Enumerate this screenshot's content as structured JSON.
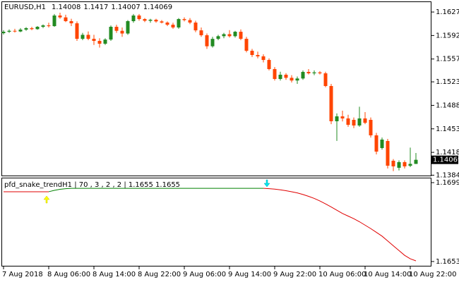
{
  "chart_data": [
    {
      "type": "candlestick",
      "title": "EURUSD,H1",
      "up_color": "#228b22",
      "down_color": "#ff4500",
      "categories": [
        "7 Aug 2018",
        null,
        null,
        null,
        null,
        null,
        null,
        null,
        "8 Aug 06:00",
        null,
        null,
        null,
        null,
        null,
        null,
        null,
        "8 Aug 14:00",
        null,
        null,
        null,
        null,
        null,
        null,
        null,
        "8 Aug 22:00",
        null,
        null,
        null,
        null,
        null,
        null,
        null,
        "9 Aug 06:00",
        null,
        null,
        null,
        null,
        null,
        null,
        null,
        "9 Aug 14:00",
        null,
        null,
        null,
        null,
        null,
        null,
        null,
        "9 Aug 22:00",
        null,
        null,
        null,
        null,
        null,
        null,
        null,
        "10 Aug 06:00",
        null,
        null,
        null,
        null,
        null,
        null,
        null,
        "10 Aug 14:00",
        null,
        null,
        null,
        null,
        null,
        null,
        null,
        "10 Aug 22:00",
        null
      ],
      "ohlc": [
        [
          1.15955,
          1.16,
          1.15935,
          1.15976
        ],
        [
          1.15976,
          1.1601,
          1.1596,
          1.1599
        ],
        [
          1.1599,
          1.1602,
          1.15965,
          1.1598
        ],
        [
          1.1598,
          1.1603,
          1.1597,
          1.16008
        ],
        [
          1.16008,
          1.16045,
          1.1599,
          1.16029
        ],
        [
          1.16029,
          1.1605,
          1.16,
          1.16015
        ],
        [
          1.16015,
          1.1606,
          1.16005,
          1.1605
        ],
        [
          1.1605,
          1.16085,
          1.1603,
          1.16071
        ],
        [
          1.16071,
          1.1611,
          1.1604,
          1.1606
        ],
        [
          1.1606,
          1.1624,
          1.1605,
          1.16218
        ],
        [
          1.16218,
          1.1626,
          1.1617,
          1.1619
        ],
        [
          1.1619,
          1.1623,
          1.1612,
          1.16134
        ],
        [
          1.16134,
          1.1617,
          1.1606,
          1.16102
        ],
        [
          1.16102,
          1.1613,
          1.1584,
          1.15871
        ],
        [
          1.15871,
          1.1596,
          1.1585,
          1.1593
        ],
        [
          1.1593,
          1.1598,
          1.1585,
          1.15871
        ],
        [
          1.15871,
          1.1593,
          1.1578,
          1.1584
        ],
        [
          1.1584,
          1.1588,
          1.1574,
          1.15798
        ],
        [
          1.15798,
          1.1588,
          1.1578,
          1.1586
        ],
        [
          1.1586,
          1.1607,
          1.1584,
          1.1605
        ],
        [
          1.1605,
          1.1608,
          1.1596,
          1.1599
        ],
        [
          1.1599,
          1.1604,
          1.159,
          1.1595
        ],
        [
          1.1595,
          1.1615,
          1.1593,
          1.16134
        ],
        [
          1.16134,
          1.1624,
          1.1611,
          1.16218
        ],
        [
          1.16218,
          1.1624,
          1.1614,
          1.16165
        ],
        [
          1.16165,
          1.1618,
          1.1612,
          1.1614
        ],
        [
          1.1614,
          1.1617,
          1.1611,
          1.16155
        ],
        [
          1.16155,
          1.1617,
          1.1611,
          1.1613
        ],
        [
          1.1613,
          1.1615,
          1.161,
          1.16113
        ],
        [
          1.16113,
          1.1613,
          1.1606,
          1.16081
        ],
        [
          1.16081,
          1.1611,
          1.1602,
          1.1604
        ],
        [
          1.1604,
          1.1618,
          1.1602,
          1.16165
        ],
        [
          1.16165,
          1.1619,
          1.1613,
          1.1615
        ],
        [
          1.1615,
          1.1618,
          1.1609,
          1.16113
        ],
        [
          1.16113,
          1.1614,
          1.1597,
          1.15997
        ],
        [
          1.15997,
          1.1604,
          1.159,
          1.15924
        ],
        [
          1.15924,
          1.1595,
          1.1572,
          1.1576
        ],
        [
          1.1576,
          1.159,
          1.1574,
          1.1587
        ],
        [
          1.1587,
          1.1593,
          1.1585,
          1.1591
        ],
        [
          1.1591,
          1.1596,
          1.1588,
          1.1594
        ],
        [
          1.1594,
          1.16,
          1.1589,
          1.1591
        ],
        [
          1.1591,
          1.1599,
          1.1589,
          1.15976
        ],
        [
          1.15976,
          1.1601,
          1.1585,
          1.15871
        ],
        [
          1.15871,
          1.159,
          1.1567,
          1.15693
        ],
        [
          1.15693,
          1.1572,
          1.156,
          1.1563
        ],
        [
          1.1563,
          1.1568,
          1.1558,
          1.1561
        ],
        [
          1.1561,
          1.1564,
          1.1552,
          1.15556
        ],
        [
          1.15556,
          1.1558,
          1.154,
          1.1542
        ],
        [
          1.1542,
          1.1545,
          1.1525,
          1.15273
        ],
        [
          1.15273,
          1.1538,
          1.1525,
          1.15336
        ],
        [
          1.15336,
          1.1536,
          1.1526,
          1.1529
        ],
        [
          1.1529,
          1.1533,
          1.1522,
          1.1525
        ],
        [
          1.1525,
          1.1531,
          1.152,
          1.1528
        ],
        [
          1.1528,
          1.154,
          1.1526,
          1.15378
        ],
        [
          1.15378,
          1.1542,
          1.1534,
          1.15357
        ],
        [
          1.15357,
          1.154,
          1.1533,
          1.1537
        ],
        [
          1.1537,
          1.1539,
          1.1534,
          1.15357
        ],
        [
          1.15357,
          1.1538,
          1.1515,
          1.15168
        ],
        [
          1.15168,
          1.152,
          1.146,
          1.14643
        ],
        [
          1.14643,
          1.1476,
          1.1435,
          1.14716
        ],
        [
          1.14716,
          1.148,
          1.1464,
          1.14685
        ],
        [
          1.14685,
          1.1474,
          1.1456,
          1.1459
        ],
        [
          1.14664,
          1.147,
          1.1454,
          1.1458
        ],
        [
          1.1458,
          1.1486,
          1.1456,
          1.14685
        ],
        [
          1.14685,
          1.1478,
          1.146,
          1.1462
        ],
        [
          1.14664,
          1.147,
          1.144,
          1.14433
        ],
        [
          1.14433,
          1.1447,
          1.1415,
          1.14191
        ],
        [
          1.14244,
          1.144,
          1.1422,
          1.1437
        ],
        [
          1.14349,
          1.1438,
          1.1394,
          1.13981
        ],
        [
          1.14055,
          1.1408,
          1.139,
          1.13971
        ],
        [
          1.1395,
          1.1406,
          1.1391,
          1.14034
        ],
        [
          1.14034,
          1.1406,
          1.1394,
          1.13971
        ],
        [
          1.1398,
          1.1425,
          1.1396,
          1.14008
        ],
        [
          1.14008,
          1.1417,
          1.14007,
          1.14069
        ]
      ],
      "ylim": [
        1.13824,
        1.16428
      ],
      "yticks": [
        {
          "value": 1.1627,
          "label": "1.16270"
        },
        {
          "value": 1.1592,
          "label": "1.15920"
        },
        {
          "value": 1.1557,
          "label": "1.15570"
        },
        {
          "value": 1.1523,
          "label": "1.15230"
        },
        {
          "value": 1.1488,
          "label": "1.14880"
        },
        {
          "value": 1.1453,
          "label": "1.14530"
        },
        {
          "value": 1.1418,
          "label": "1.14180"
        },
        {
          "value": 1.1384,
          "label": "1.13840"
        }
      ]
    },
    {
      "type": "line",
      "title": "pfd_snake_trendH1 | 70 , 3 , 2 , 2 | 1.1655 1.1655",
      "series": [
        {
          "color": "#e00000",
          "values": [
            1.16937,
            1.16937,
            1.16937,
            1.16937,
            1.16937,
            1.16937,
            1.16937,
            1.16937,
            1.16937,
            null,
            null,
            null,
            null,
            null,
            null,
            null,
            null,
            null,
            null,
            null,
            null,
            null,
            null,
            null,
            null,
            null,
            null,
            null,
            null,
            null,
            null,
            null,
            null,
            null,
            null,
            null,
            null,
            null,
            null,
            null,
            null,
            null,
            null,
            null,
            null,
            null,
            1.16957,
            1.16955,
            1.16952,
            1.16948,
            1.16943,
            1.16937,
            1.1693,
            1.16921,
            1.1691,
            1.16898,
            1.16883,
            1.16866,
            1.16848,
            1.16829,
            1.1681,
            1.16795,
            1.1678,
            1.16762,
            1.16742,
            1.16722,
            1.167,
            1.16678,
            1.1665,
            1.16622,
            1.16594,
            1.16566,
            1.16546,
            1.16534
          ]
        },
        {
          "color": "#008000",
          "values": [
            null,
            null,
            null,
            null,
            null,
            null,
            null,
            null,
            1.16937,
            1.16945,
            1.16951,
            1.16955,
            1.16957,
            1.16957,
            1.16957,
            1.16957,
            1.16957,
            1.16957,
            1.16957,
            1.16957,
            1.16957,
            1.16957,
            1.16957,
            1.16957,
            1.16957,
            1.16957,
            1.16957,
            1.16957,
            1.16957,
            1.16957,
            1.16957,
            1.16957,
            1.16957,
            1.16957,
            1.16957,
            1.16957,
            1.16957,
            1.16957,
            1.16957,
            1.16957,
            1.16957,
            1.16957,
            1.16957,
            1.16957,
            1.16957,
            1.16957,
            1.16957,
            null,
            null,
            null,
            null,
            null,
            null,
            null,
            null,
            null,
            null,
            null,
            null,
            null,
            null,
            null,
            null,
            null,
            null,
            null,
            null,
            null,
            null,
            null,
            null,
            null,
            null,
            null
          ]
        }
      ],
      "ylim": [
        1.16501,
        1.17019
      ],
      "yticks": [
        1.1699,
        1.1653
      ]
    }
  ]
}
